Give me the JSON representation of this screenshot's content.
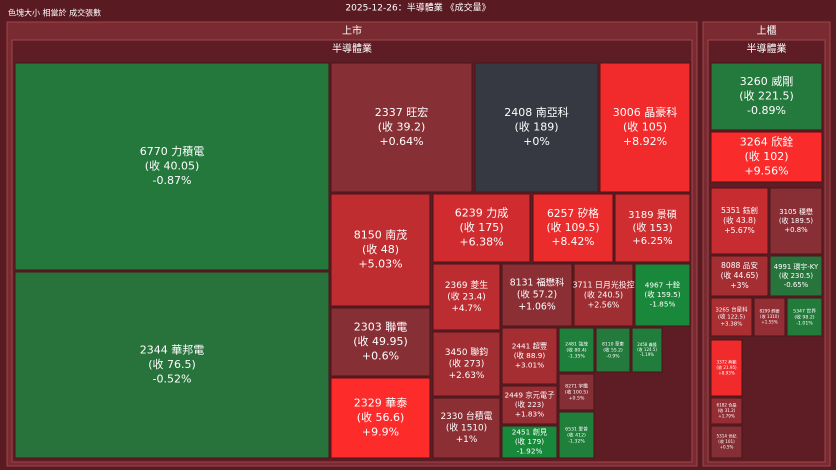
{
  "chart_data": {
    "type": "treemap",
    "note": "色塊大小 相當於 成交張數",
    "title": "2025-12-26：半導體業 《成交量》",
    "groups": [
      {
        "name": "上市",
        "sector": "半導體業",
        "tiles": [
          {
            "name": "6770 力積電",
            "close": 40.05,
            "close_label": "(收 40.05)",
            "change": -0.87,
            "change_label": "-0.87%"
          },
          {
            "name": "2344 華邦電",
            "close": 76.5,
            "close_label": "(收 76.5)",
            "change": -0.52,
            "change_label": "-0.52%"
          },
          {
            "name": "2337 旺宏",
            "close": 39.2,
            "close_label": "(收 39.2)",
            "change": 0.64,
            "change_label": "+0.64%"
          },
          {
            "name": "2408 南亞科",
            "close": 189,
            "close_label": "(收 189)",
            "change": 0,
            "change_label": "+0%"
          },
          {
            "name": "3006 晶豪科",
            "close": 105,
            "close_label": "(收 105)",
            "change": 8.92,
            "change_label": "+8.92%"
          },
          {
            "name": "8150 南茂",
            "close": 48,
            "close_label": "(收 48)",
            "change": 5.03,
            "change_label": "+5.03%"
          },
          {
            "name": "2303 聯電",
            "close": 49.95,
            "close_label": "(收 49.95)",
            "change": 0.6,
            "change_label": "+0.6%"
          },
          {
            "name": "2329 華泰",
            "close": 56.6,
            "close_label": "(收 56.6)",
            "change": 9.9,
            "change_label": "+9.9%"
          },
          {
            "name": "6239 力成",
            "close": 175,
            "close_label": "(收 175)",
            "change": 6.38,
            "change_label": "+6.38%"
          },
          {
            "name": "6257 矽格",
            "close": 109.5,
            "close_label": "(收 109.5)",
            "change": 8.42,
            "change_label": "+8.42%"
          },
          {
            "name": "3189 景碩",
            "close": 153,
            "close_label": "(收 153)",
            "change": 6.25,
            "change_label": "+6.25%"
          },
          {
            "name": "2369 菱生",
            "close": 23.4,
            "close_label": "(收 23.4)",
            "change": 4.7,
            "change_label": "+4.7%"
          },
          {
            "name": "3450 聯鈞",
            "close": 273,
            "close_label": "(收 273)",
            "change": 2.63,
            "change_label": "+2.63%"
          },
          {
            "name": "2330 台積電",
            "close": 1510,
            "close_label": "(收 1510)",
            "change": 1,
            "change_label": "+1%"
          },
          {
            "name": "8131 福懋科",
            "close": 57.2,
            "close_label": "(收 57.2)",
            "change": 1.06,
            "change_label": "+1.06%"
          },
          {
            "name": "3711 日月光投控",
            "close": 240.5,
            "close_label": "(收 240.5)",
            "change": 2.56,
            "change_label": "+2.56%"
          },
          {
            "name": "4967 十銓",
            "close": 159.5,
            "close_label": "(收 159.5)",
            "change": -1.85,
            "change_label": "-1.85%"
          },
          {
            "name": "2441 超豐",
            "close": 88.9,
            "close_label": "(收 88.9)",
            "change": 3.01,
            "change_label": "+3.01%"
          },
          {
            "name": "2449 京元電子",
            "close": 223,
            "close_label": "(收 223)",
            "change": 1.83,
            "change_label": "+1.83%"
          },
          {
            "name": "2451 創見",
            "close": 179,
            "close_label": "(收 179)",
            "change": -1.92,
            "change_label": "-1.92%"
          },
          {
            "name": "2481 強茂",
            "close": 80.4,
            "close_label": "(收 80.4)",
            "change": -1.35,
            "change_label": "-1.35%"
          },
          {
            "name": "8271 宇瞻",
            "close": 100.5,
            "close_label": "(收 100.5)",
            "change": 0.5,
            "change_label": "+0.5%"
          },
          {
            "name": "6531 愛普",
            "close": 412,
            "close_label": "(收 412)",
            "change": -1.32,
            "change_label": "-1.32%"
          },
          {
            "name": "8110 華東",
            "close": 55.2,
            "close_label": "(收 55.2)",
            "change": -0.9,
            "change_label": "-0.9%"
          },
          {
            "name": "2458 義隆",
            "close": 124.5,
            "close_label": "(收 124.5)",
            "change": -1.19,
            "change_label": "-1.19%"
          }
        ]
      },
      {
        "name": "上櫃",
        "sector": "半導體業",
        "tiles": [
          {
            "name": "3260 威剛",
            "close": 221.5,
            "close_label": "(收 221.5)",
            "change": -0.89,
            "change_label": "-0.89%"
          },
          {
            "name": "3264 欣銓",
            "close": 102,
            "close_label": "(收 102)",
            "change": 9.56,
            "change_label": "+9.56%"
          },
          {
            "name": "5351 鈺創",
            "close": 43.8,
            "close_label": "(收 43.8)",
            "change": 5.67,
            "change_label": "+5.67%"
          },
          {
            "name": "3105 穩懋",
            "close": 189.5,
            "close_label": "(收 189.5)",
            "change": 0.8,
            "change_label": "+0.8%"
          },
          {
            "name": "8088 品安",
            "close": 44.65,
            "close_label": "(收 44.65)",
            "change": 3,
            "change_label": "+3%"
          },
          {
            "name": "4991 環宇-KY",
            "close": 230.5,
            "close_label": "(收 230.5)",
            "change": -0.65,
            "change_label": "-0.65%"
          },
          {
            "name": "3265 台星科",
            "close": 122.5,
            "close_label": "(收 122.5)",
            "change": 3.38,
            "change_label": "+3.38%"
          },
          {
            "name": "8299 群聯",
            "close": 1310,
            "close_label": "(收 1310)",
            "change": 1.55,
            "change_label": "+1.55%"
          },
          {
            "name": "5347 世界",
            "close": 98.2,
            "close_label": "(收 98.2)",
            "change": -1.01,
            "change_label": "-1.01%"
          },
          {
            "name": "3372 典範",
            "close": 21.95,
            "close_label": "(收 21.95)",
            "change": 8.93,
            "change_label": "+8.93%"
          },
          {
            "name": "6182 合晶",
            "close": 31.2,
            "close_label": "(收 31.2)",
            "change": 1.79,
            "change_label": "+1.79%"
          },
          {
            "name": "5314 世紀",
            "close": 101,
            "close_label": "(收 101)",
            "change": 0.5,
            "change_label": "+0.5%"
          }
        ]
      }
    ]
  }
}
